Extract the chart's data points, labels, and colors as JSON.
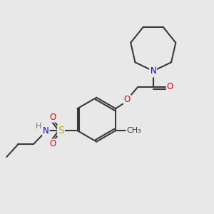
{
  "background_color": "#e8e8e8",
  "bond_color": "#3a3a3a",
  "atom_colors": {
    "N": "#0000ee",
    "O": "#ee0000",
    "S": "#bbbb00",
    "H": "#777777",
    "C": "#3a3a3a"
  },
  "figsize": [
    3.0,
    3.0
  ],
  "dpi": 100,
  "lw": 1.5,
  "fs": 8.5,
  "dbl_off": 0.1
}
